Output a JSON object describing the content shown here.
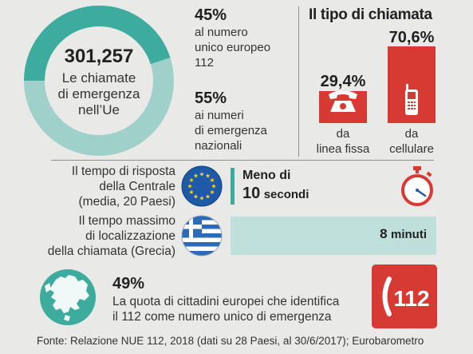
{
  "total": {
    "value": "301,257",
    "line1": "Le chiamate",
    "line2": "di emergenza",
    "line3": "nell’Ue"
  },
  "donut": {
    "segments": [
      {
        "pct": "45%",
        "value": 45,
        "l1": "al numero",
        "l2": "unico europeo",
        "l3": "112",
        "color": "#3dab9d"
      },
      {
        "pct": "55%",
        "value": 55,
        "l1": "ai numeri",
        "l2": "di emergenza",
        "l3": "nazionali",
        "color": "#9fd0c9"
      }
    ]
  },
  "call_type": {
    "title": "Il tipo di chiamata",
    "landline": {
      "pct": "29,4%",
      "value": 29.4,
      "l1": "da",
      "l2": "linea fissa"
    },
    "mobile": {
      "pct": "70,6%",
      "value": 70.6,
      "l1": "da",
      "l2": "cellulare"
    },
    "bar_color": "#d63a32"
  },
  "response": {
    "l1": "Il tempo di risposta",
    "l2": "della Centrale",
    "l3": "(media, 20 Paesi)",
    "value_l1": "Meno di",
    "value_num": "10",
    "value_unit": "secondi"
  },
  "localization": {
    "l1": "Il tempo massimo",
    "l2": "di localizzazione",
    "l3": "della chiamata (Grecia)",
    "value_num": "8",
    "value_unit": "minuti",
    "bar_color": "#bfe0da"
  },
  "awareness": {
    "pct": "49%",
    "value": 49,
    "l1": "La quota di cittadini europei che identifica",
    "l2": "il 112 come numero unico di emergenza"
  },
  "logo": {
    "number": "112"
  },
  "source": "Fonte: Relazione NUE 112, 2018 (dati su 28 Paesi, al 30/6/2017); Eurobarometro",
  "chart_data": [
    {
      "type": "pie",
      "title": "",
      "total": 301257,
      "categories": [
        "al numero unico europeo 112",
        "ai numeri di emergenza nazionali"
      ],
      "values": [
        45,
        55
      ],
      "unit": "%"
    },
    {
      "type": "bar",
      "title": "Il tipo di chiamata",
      "categories": [
        "da linea fissa",
        "da cellulare"
      ],
      "values": [
        29.4,
        70.6
      ],
      "unit": "%"
    }
  ]
}
